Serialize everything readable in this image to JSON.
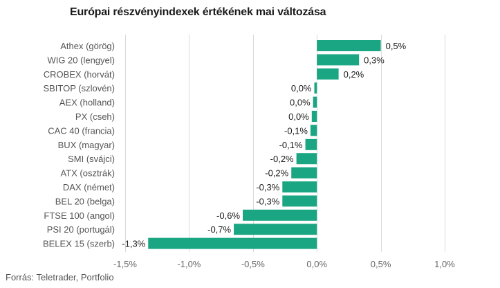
{
  "title": "Európai részvényindexek értékének mai változása",
  "source": "Forrás: Teletrader, Portfolio",
  "colors": {
    "bar": "#1aa583",
    "grid": "#d9d9d9",
    "text": "#1a1a1a",
    "muted": "#555555"
  },
  "chart_data": {
    "type": "bar",
    "orientation": "horizontal",
    "title": "Európai részvényindexek értékének mai változása",
    "categories": [
      "Athex (görög)",
      "WIG 20 (lengyel)",
      "CROBEX (horvát)",
      "SBITOP (szlovén)",
      "AEX (holland)",
      "PX (cseh)",
      "CAC 40 (francia)",
      "BUX (magyar)",
      "SMI (svájci)",
      "ATX (osztrák)",
      "DAX (német)",
      "BEL 20 (belga)",
      "FTSE 100 (angol)",
      "PSI 20 (portugál)",
      "BELEX 15 (szerb)"
    ],
    "values": [
      0.5,
      0.33,
      0.17,
      -0.02,
      -0.03,
      -0.04,
      -0.05,
      -0.09,
      -0.16,
      -0.2,
      -0.27,
      -0.27,
      -0.58,
      -0.65,
      -1.32
    ],
    "value_labels": [
      "0,5%",
      "0,3%",
      "0,2%",
      "0,0%",
      "0,0%",
      "0,0%",
      "-0,1%",
      "-0,1%",
      "-0,2%",
      "-0,2%",
      "-0,3%",
      "-0,3%",
      "-0,6%",
      "-0,7%",
      "-1,3%"
    ],
    "xlim": [
      -1.5,
      1.0
    ],
    "xticks": [
      -1.5,
      -1.0,
      -0.5,
      0.0,
      0.5,
      1.0
    ],
    "xtick_labels": [
      "-1,5%",
      "-1,0%",
      "-0,5%",
      "0,0%",
      "0,5%",
      "1,0%"
    ],
    "xlabel": "",
    "ylabel": "",
    "grid": "vertical",
    "legend": "none"
  }
}
